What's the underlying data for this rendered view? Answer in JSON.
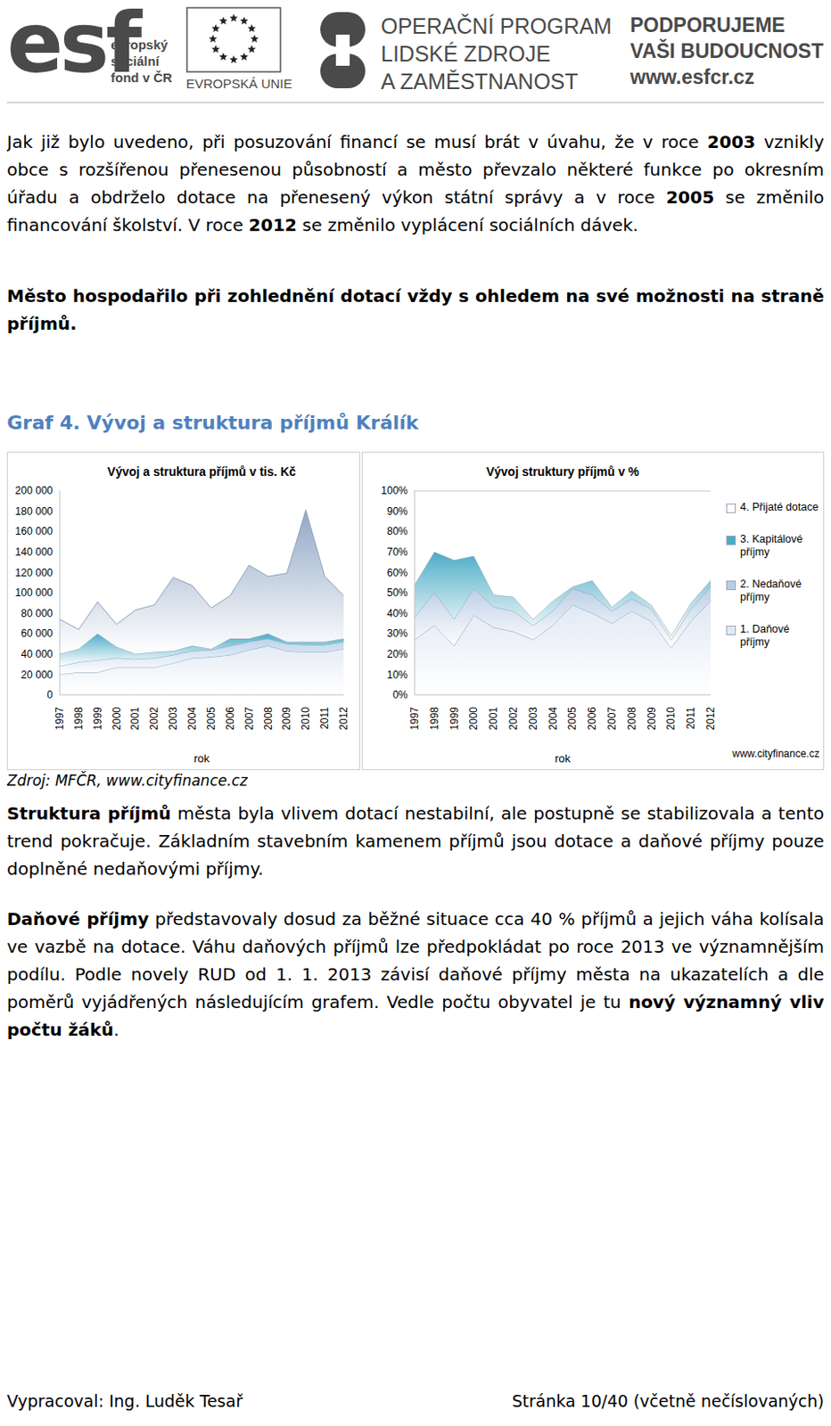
{
  "header": {
    "esf_logo": "esf",
    "esf_text": [
      "evropský",
      "sociální",
      "fond v ČR"
    ],
    "eu_text": "EVROPSKÁ UNIE",
    "program": [
      "OPERAČNÍ PROGRAM",
      "LIDSKÉ ZDROJE",
      "A ZAMĚSTNANOST"
    ],
    "slogan": [
      "PODPORUJEME",
      "VAŠI BUDOUCNOST"
    ],
    "url": "www.esfcr.cz"
  },
  "intro": [
    [
      "Jak již bylo uvedeno, při posuzování financí se musí brát v úvahu, že v roce ",
      {
        "b": "2003"
      },
      " vznikly obce s rozšířenou přenesenou působností a město převzalo některé funkce po okresním úřadu a obdrželo dotace na přenesený výkon státní správy a v roce ",
      {
        "b": "2005"
      },
      " se změnilo financování školství. V roce ",
      {
        "b": "2012"
      },
      " se změnilo vyplácení sociálních dávek."
    ],
    [
      {
        "b": "Město hospodařilo při zohlednění dotací vždy s ohledem na své možnosti na straně příjmů."
      }
    ]
  ],
  "figure": {
    "title": "Graf 4. Vývoj a struktura příjmů Králík",
    "source": "Zdroj: MFČR, www.cityfinance.cz",
    "watermark": "www.cityfinance.cz"
  },
  "chart_data": [
    {
      "type": "area",
      "stacked": true,
      "title": "Vývoj a struktura příjmů v tis. Kč",
      "x_label": "rok",
      "categories": [
        "1997",
        "1998",
        "1999",
        "2000",
        "2001",
        "2002",
        "2003",
        "2004",
        "2005",
        "2006",
        "2007",
        "2008",
        "2009",
        "2010",
        "2011",
        "2012"
      ],
      "ylim": [
        0,
        200000
      ],
      "yticks": [
        0,
        {
          "value": 20000,
          "label": "20 000"
        },
        {
          "value": 40000,
          "label": "40 000"
        },
        {
          "value": 60000,
          "label": "60 000"
        },
        {
          "value": 80000,
          "label": "80 000"
        },
        {
          "value": 100000,
          "label": "100 000"
        },
        {
          "value": 120000,
          "label": "120 000"
        },
        {
          "value": 140000,
          "label": "140 000"
        },
        {
          "value": 160000,
          "label": "160 000"
        },
        {
          "value": 180000,
          "label": "180 000"
        },
        {
          "value": 200000,
          "label": "200 000"
        }
      ],
      "series": [
        {
          "name": "1. Daňové příjmy",
          "color": "#e4ebf5",
          "values": [
            20000,
            22000,
            22000,
            27000,
            27000,
            27000,
            31000,
            36000,
            37000,
            39000,
            44000,
            48000,
            43000,
            42000,
            42000,
            45000
          ]
        },
        {
          "name": "2. Nedaňové příjmy",
          "color": "#b9d3ea",
          "values": [
            8000,
            10000,
            12000,
            9000,
            8000,
            9000,
            8000,
            7000,
            7000,
            9000,
            8000,
            7000,
            7000,
            7000,
            7000,
            7000
          ]
        },
        {
          "name": "3. Kapitálové příjmy",
          "color": "#4bacc6",
          "values": [
            12000,
            13000,
            26000,
            11000,
            5000,
            6000,
            4000,
            5000,
            1000,
            7000,
            3000,
            5000,
            2000,
            3000,
            3000,
            3000
          ]
        },
        {
          "name": "4. Přijaté dotace",
          "color": "#8fa6c4",
          "values": [
            34000,
            19000,
            31000,
            22000,
            43000,
            46000,
            72000,
            59000,
            40000,
            42000,
            72000,
            56000,
            67000,
            129000,
            64000,
            42000
          ]
        }
      ]
    },
    {
      "type": "area",
      "stacked": true,
      "title": "Vývoj struktury příjmů v %",
      "x_label": "rok",
      "legend": "right",
      "categories": [
        "1997",
        "1998",
        "1999",
        "2000",
        "2001",
        "2002",
        "2003",
        "2004",
        "2005",
        "2006",
        "2007",
        "2008",
        "2009",
        "2010",
        "2011",
        "2012"
      ],
      "ylim": [
        0,
        100
      ],
      "yticks": [
        {
          "value": 0,
          "label": "0%"
        },
        {
          "value": 10,
          "label": "10%"
        },
        {
          "value": 20,
          "label": "20%"
        },
        {
          "value": 30,
          "label": "30%"
        },
        {
          "value": 40,
          "label": "40%"
        },
        {
          "value": 50,
          "label": "50%"
        },
        {
          "value": 60,
          "label": "60%"
        },
        {
          "value": 70,
          "label": "70%"
        },
        {
          "value": 80,
          "label": "80%"
        },
        {
          "value": 90,
          "label": "90%"
        },
        {
          "value": 100,
          "label": "100%"
        }
      ],
      "series": [
        {
          "name": "1. Daňové příjmy",
          "color": "#dfe8f4",
          "values": [
            27,
            34,
            24,
            39,
            33,
            31,
            27,
            34,
            44,
            40,
            35,
            41,
            36,
            23,
            36,
            46
          ]
        },
        {
          "name": "2. Nedaňové příjmy",
          "color": "#b9cde5",
          "values": [
            11,
            16,
            13,
            13,
            10,
            10,
            7,
            7,
            8,
            9,
            6,
            6,
            6,
            4,
            6,
            7
          ]
        },
        {
          "name": "3. Kapitálové příjmy",
          "color": "#4bacc6",
          "values": [
            16,
            20,
            29,
            16,
            6,
            7,
            3,
            5,
            1,
            7,
            2,
            4,
            2,
            2,
            3,
            3
          ]
        },
        {
          "name": "4. Přijaté dotace",
          "color": "#ffffff",
          "values": [
            46,
            30,
            34,
            32,
            51,
            52,
            63,
            54,
            47,
            44,
            57,
            49,
            56,
            71,
            55,
            44
          ]
        }
      ]
    }
  ],
  "analysis": [
    [
      {
        "b": "Struktura příjmů"
      },
      " města byla vlivem dotací nestabilní, ale postupně se stabilizovala a tento trend pokračuje. Základním stavebním kamenem příjmů jsou dotace a daňové příjmy pouze doplněné nedaňovými příjmy."
    ],
    [
      {
        "b": "Daňové příjmy"
      },
      " představovaly dosud za běžné situace cca 40 % příjmů a jejich váha kolísala ve vazbě na dotace. Váhu daňových příjmů lze předpokládat po roce 2013 ve významnějším podílu. Podle novely RUD od 1. 1. 2013 závisí daňové příjmy města na ukazatelích a dle poměrů vyjádřených následujícím grafem. Vedle počtu obyvatel je tu ",
      {
        "b": "nový významný vliv počtu žáků"
      },
      "."
    ]
  ],
  "footer": {
    "left": "Vypracoval: Ing. Luděk Tesař",
    "right": "Stránka 10/40 (včetně nečíslovaných)"
  }
}
